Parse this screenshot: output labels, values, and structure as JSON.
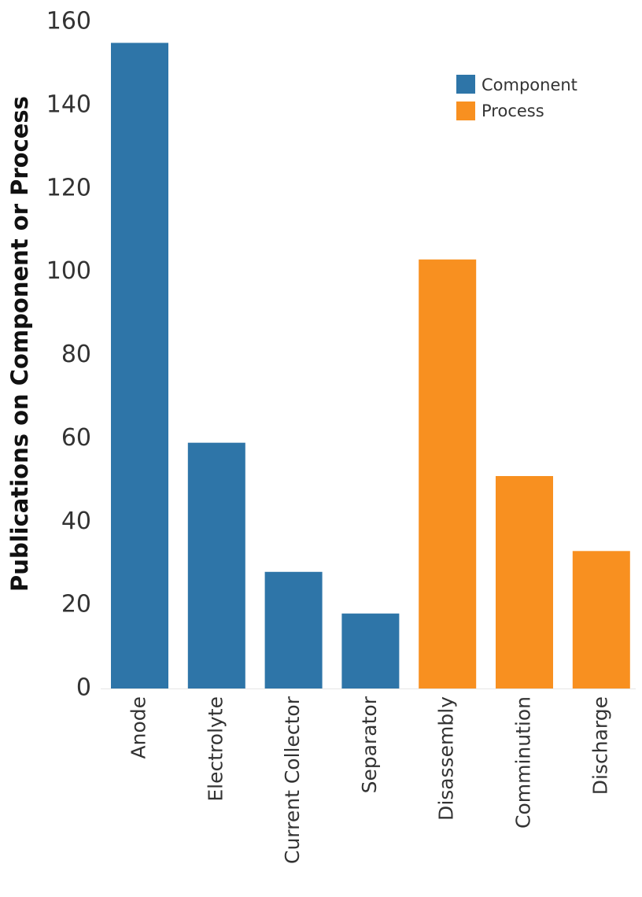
{
  "chart_data": {
    "type": "bar",
    "categories": [
      "Anode",
      "Electrolyte",
      "Current Collector",
      "Separator",
      "Disassembly",
      "Comminution",
      "Discharge"
    ],
    "values": [
      155,
      59,
      28,
      18,
      103,
      51,
      33
    ],
    "groups": [
      "Component",
      "Component",
      "Component",
      "Component",
      "Process",
      "Process",
      "Process"
    ],
    "ylabel": "Publications on Component or Process",
    "xlabel": "",
    "ylim": [
      0,
      160
    ],
    "yticks": [
      0,
      20,
      40,
      60,
      80,
      100,
      120,
      140,
      160
    ],
    "grid": false,
    "legend": {
      "position": "top-right",
      "entries": [
        {
          "name": "Component",
          "color": "#2e75a8"
        },
        {
          "name": "Process",
          "color": "#f89020"
        }
      ]
    }
  }
}
